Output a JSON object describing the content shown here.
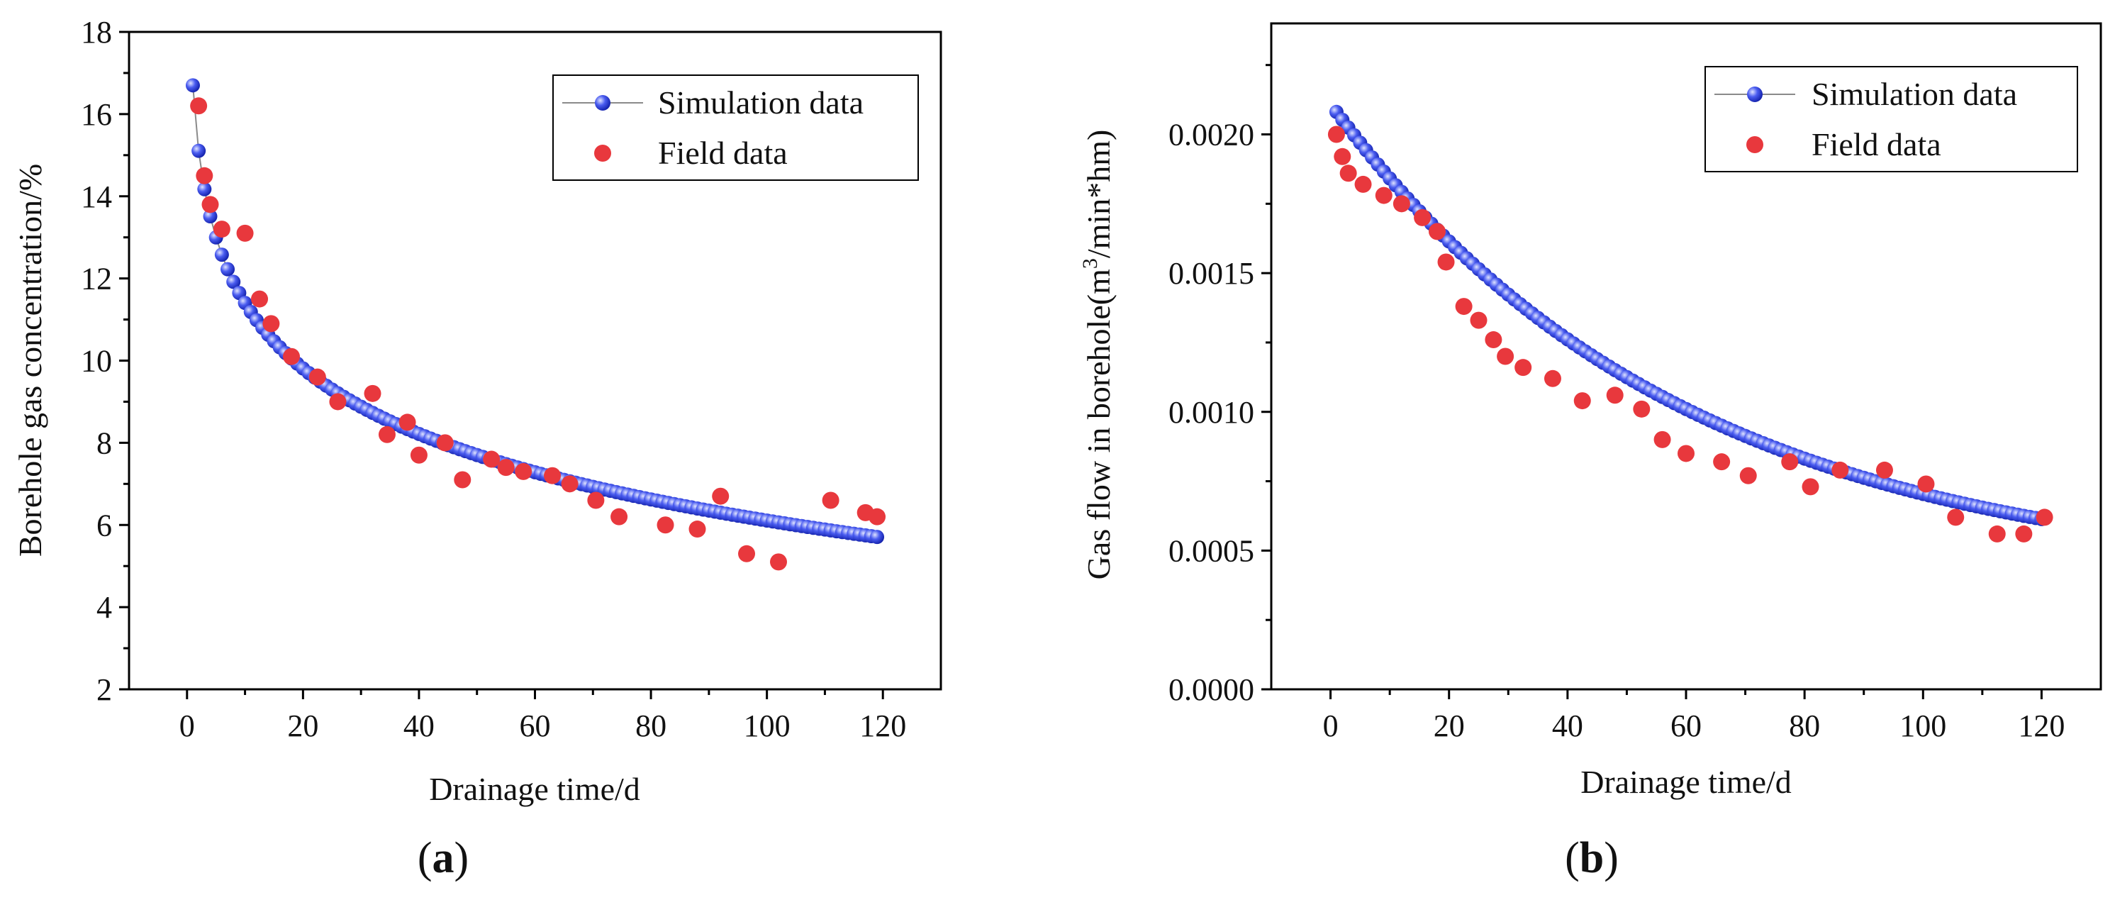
{
  "panels": [
    {
      "caption": "(a)",
      "caption_letter": "a",
      "legend": {
        "simulation": "Simulation data",
        "field": "Field data"
      }
    },
    {
      "caption": "(b)",
      "caption_letter": "b",
      "legend": {
        "simulation": "Simulation data",
        "field": "Field data"
      }
    }
  ],
  "colors": {
    "simulation": "#1c2fd6",
    "field": "#e8383d"
  },
  "chart_data": [
    {
      "type": "scatter",
      "xlabel": "Drainage time/d",
      "ylabel": "Borehole gas concentration/%",
      "xlim": [
        -10,
        130
      ],
      "ylim": [
        2,
        18
      ],
      "xticks": [
        0,
        20,
        40,
        60,
        80,
        100,
        120
      ],
      "yticks": [
        2,
        4,
        6,
        8,
        10,
        12,
        14,
        16,
        18
      ],
      "ytick_labels": [
        "2",
        "4",
        "6",
        "8",
        "10",
        "12",
        "14",
        "16",
        "18"
      ],
      "legend_position": "top-right",
      "series": [
        {
          "name": "Simulation data",
          "style": "line-with-markers",
          "model": {
            "form": "a - b*ln(x)",
            "a": 16.7,
            "b": 2.3,
            "x_start": 1,
            "x_end": 119,
            "x_step": 1
          }
        },
        {
          "name": "Field data",
          "style": "markers",
          "x": [
            2,
            3,
            4,
            6,
            10,
            12.5,
            14.5,
            18,
            22.5,
            26,
            32,
            34.5,
            38,
            40,
            44.5,
            47.5,
            52.5,
            55,
            58,
            63,
            66,
            70.5,
            74.5,
            82.5,
            88,
            92,
            96.5,
            102,
            111,
            117,
            119
          ],
          "y": [
            16.2,
            14.5,
            13.8,
            13.2,
            13.1,
            11.5,
            10.9,
            10.1,
            9.6,
            9.0,
            9.2,
            8.2,
            8.5,
            7.7,
            8.0,
            7.1,
            7.6,
            7.4,
            7.3,
            7.2,
            7.0,
            6.6,
            6.2,
            6.0,
            5.9,
            6.7,
            5.3,
            5.1,
            6.6,
            6.3,
            6.2
          ]
        }
      ]
    },
    {
      "type": "scatter",
      "xlabel": "Drainage time/d",
      "ylabel_prefix": "Gas flow in borehole(m",
      "ylabel_sup": "3",
      "ylabel_suffix": "/min*hm)",
      "xlim": [
        -10,
        130
      ],
      "ylim": [
        0,
        0.0024
      ],
      "xticks": [
        0,
        20,
        40,
        60,
        80,
        100,
        120
      ],
      "yticks": [
        0,
        0.0005,
        0.001,
        0.0015,
        0.002
      ],
      "ytick_labels": [
        "0.0000",
        "0.0005",
        "0.0010",
        "0.0015",
        "0.0020"
      ],
      "legend_position": "top-right",
      "series": [
        {
          "name": "Simulation data",
          "style": "line-with-markers",
          "model": {
            "form": "(p - q)*exp(-k*x) + q",
            "p": 0.00211,
            "q": 0.00039,
            "k": 0.017,
            "x_start": 1,
            "x_end": 120,
            "x_step": 1
          }
        },
        {
          "name": "Field data",
          "style": "markers",
          "x": [
            1,
            2,
            3,
            5.5,
            9,
            12,
            15.5,
            18,
            19.5,
            22.5,
            25,
            27.5,
            29.5,
            32.5,
            37.5,
            42.5,
            48,
            52.5,
            56,
            60,
            66,
            70.5,
            77.5,
            81,
            86,
            93.5,
            100.5,
            105.5,
            112.5,
            117,
            120.5
          ],
          "y": [
            0.002,
            0.00192,
            0.00186,
            0.00182,
            0.00178,
            0.00175,
            0.0017,
            0.00165,
            0.00154,
            0.00138,
            0.00133,
            0.00126,
            0.0012,
            0.00116,
            0.00112,
            0.00104,
            0.00106,
            0.00101,
            0.0009,
            0.00085,
            0.00082,
            0.00077,
            0.00082,
            0.00073,
            0.00079,
            0.00079,
            0.00074,
            0.00062,
            0.00056,
            0.00056,
            0.00062
          ]
        }
      ]
    }
  ]
}
